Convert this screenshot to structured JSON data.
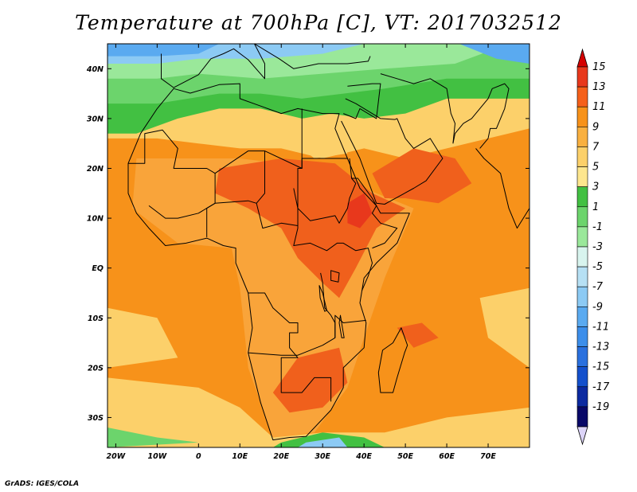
{
  "header": {
    "title": "Temperature at 700hPa [C], VT: 2017032512"
  },
  "footer": {
    "credit": "GrADS: IGES/COLA"
  },
  "map": {
    "lon_range": [
      -22,
      80
    ],
    "lat_range": [
      -36,
      45
    ],
    "lat_ticks": [
      {
        "label": "40N",
        "lat": 40
      },
      {
        "label": "30N",
        "lat": 30
      },
      {
        "label": "20N",
        "lat": 20
      },
      {
        "label": "10N",
        "lat": 10
      },
      {
        "label": "EQ",
        "lat": 0
      },
      {
        "label": "10S",
        "lat": -10
      },
      {
        "label": "20S",
        "lat": -20
      },
      {
        "label": "30S",
        "lat": -30
      }
    ],
    "lon_ticks": [
      {
        "label": "20W",
        "lon": -20
      },
      {
        "label": "10W",
        "lon": -10
      },
      {
        "label": "0",
        "lon": 0
      },
      {
        "label": "10E",
        "lon": 10
      },
      {
        "label": "20E",
        "lon": 20
      },
      {
        "label": "30E",
        "lon": 30
      },
      {
        "label": "40E",
        "lon": 40
      },
      {
        "label": "50E",
        "lon": 50
      },
      {
        "label": "60E",
        "lon": 60
      },
      {
        "label": "70E",
        "lon": 70
      }
    ]
  },
  "colorbar": {
    "labels": [
      "15",
      "13",
      "11",
      "9",
      "7",
      "5",
      "3",
      "1",
      "-1",
      "-3",
      "-5",
      "-7",
      "-9",
      "-11",
      "-13",
      "-15",
      "-17",
      "-19"
    ],
    "colors": [
      "#e8381c",
      "#f5601a",
      "#f7921a",
      "#f9b040",
      "#fcd06a",
      "#fde68e",
      "#42c042",
      "#6cd46c",
      "#9ae89a",
      "#d8f4ee",
      "#b6e0f4",
      "#8ccaf4",
      "#5aaaf0",
      "#3c8eea",
      "#2a70de",
      "#1450cc",
      "#0c2aa0",
      "#080868"
    ],
    "top_arrow_color": "#d40000",
    "bottom_arrow_color": "#dcd4f8"
  },
  "palette": {
    "ocean_warm": "#f7921a",
    "land_warm": "#f9a43a",
    "hot": "#f0601c",
    "hottest": "#e8381c",
    "mild": "#fcd06a",
    "cool_green": "#42c042",
    "light_green": "#6cd46c",
    "pale_green": "#9ae89a",
    "sky_blue": "#8ccaf4",
    "blue": "#5aaaf0",
    "outline": "#000000"
  }
}
